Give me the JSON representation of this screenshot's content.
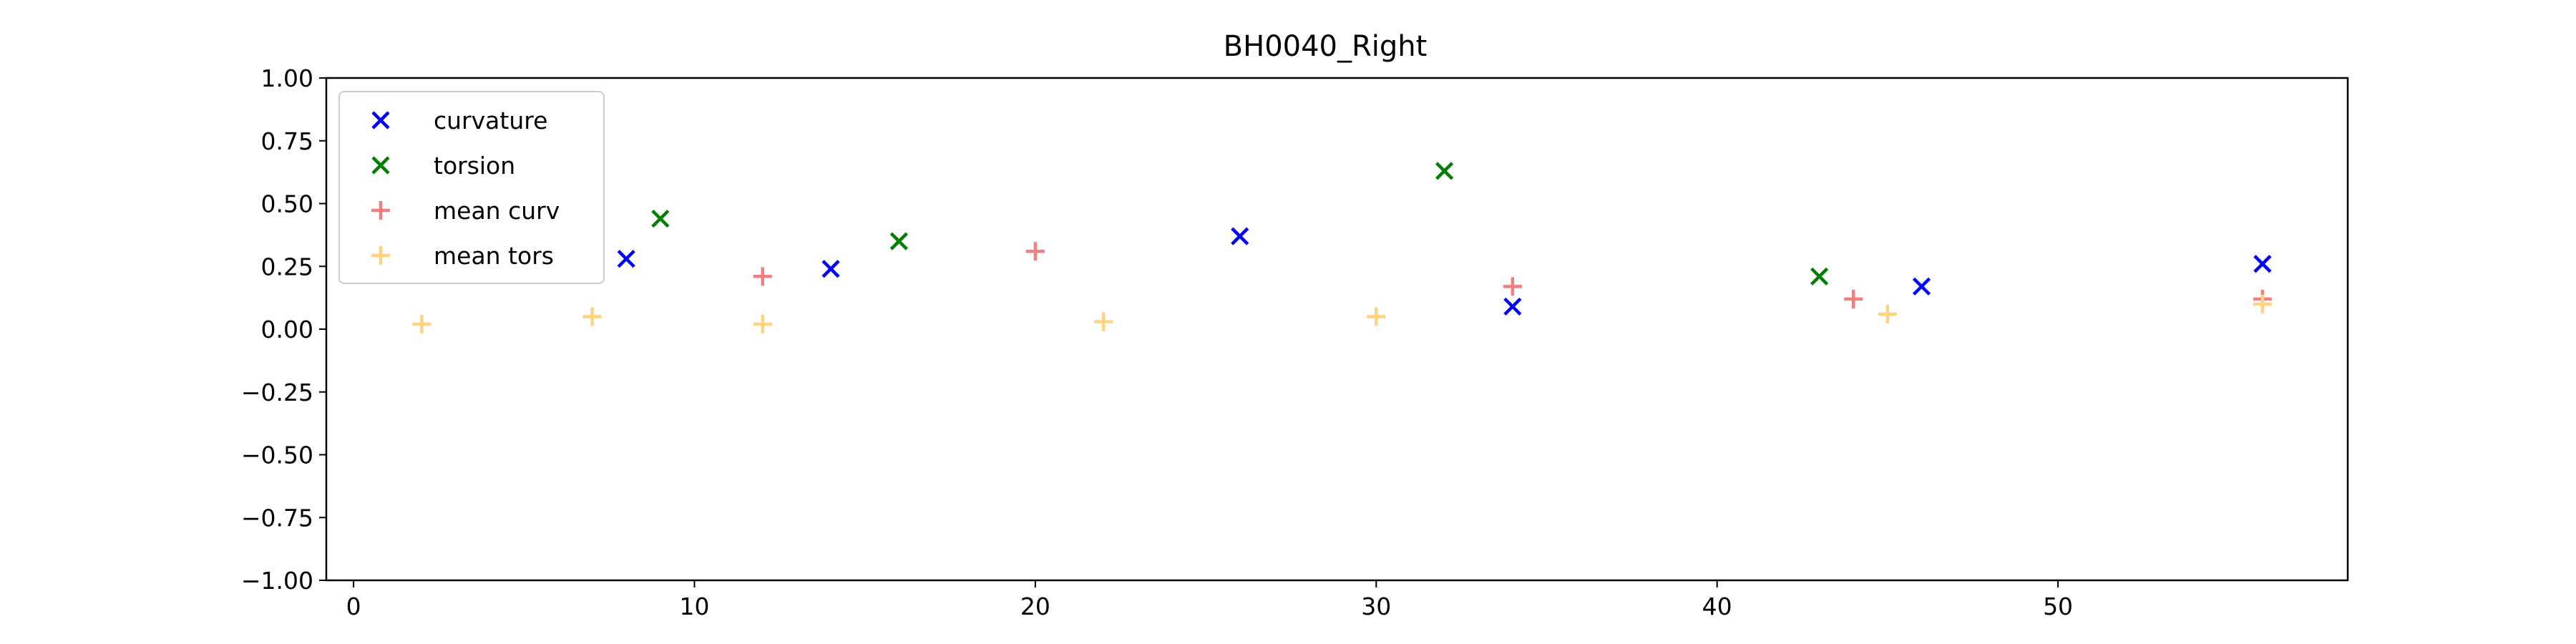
{
  "chart_data": {
    "type": "scatter",
    "title": "BH0040_Right",
    "xlabel": "",
    "ylabel": "",
    "xlim": [
      -0.8,
      58.5
    ],
    "ylim": [
      -1.0,
      1.0
    ],
    "xticks": [
      0,
      10,
      20,
      30,
      40,
      50
    ],
    "xtick_labels": [
      "0",
      "10",
      "20",
      "30",
      "40",
      "50"
    ],
    "yticks": [
      1.0,
      0.75,
      0.5,
      0.25,
      0.0,
      -0.25,
      -0.5,
      -0.75,
      -1.0
    ],
    "ytick_labels": [
      "1.00",
      "0.75",
      "0.50",
      "0.25",
      "0.00",
      "−0.25",
      "−0.50",
      "−0.75",
      "−1.00"
    ],
    "grid": false,
    "legend_position": "top-left",
    "series": [
      {
        "name": "curvature",
        "marker": "x",
        "color": "#0000ff",
        "x": [
          8,
          14,
          26,
          34,
          46,
          56
        ],
        "y": [
          0.28,
          0.24,
          0.37,
          0.09,
          0.17,
          0.26
        ]
      },
      {
        "name": "torsion",
        "marker": "x",
        "color": "#008000",
        "x": [
          9,
          16,
          32,
          43
        ],
        "y": [
          0.44,
          0.35,
          0.63,
          0.21
        ]
      },
      {
        "name": "mean curv",
        "marker": "+",
        "color": "#f08080",
        "x": [
          12,
          20,
          34,
          44,
          56
        ],
        "y": [
          0.21,
          0.31,
          0.17,
          0.12,
          0.12
        ]
      },
      {
        "name": "mean tors",
        "marker": "+",
        "color": "#ffd37f",
        "x": [
          2,
          7,
          12,
          22,
          30,
          45,
          56
        ],
        "y": [
          0.02,
          0.05,
          0.02,
          0.03,
          0.05,
          0.06,
          0.1
        ]
      }
    ]
  }
}
